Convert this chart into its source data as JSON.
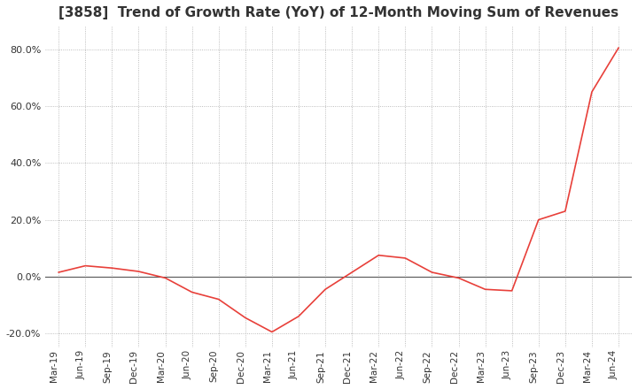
{
  "title": "[3858]  Trend of Growth Rate (YoY) of 12-Month Moving Sum of Revenues",
  "title_fontsize": 11,
  "line_color": "#e8403a",
  "background_color": "#ffffff",
  "grid_color": "#aaaaaa",
  "zero_line_color": "#555555",
  "ylim": [
    -25,
    88
  ],
  "yticks": [
    -20.0,
    0.0,
    20.0,
    40.0,
    60.0,
    80.0
  ],
  "x_labels": [
    "Mar-19",
    "Jun-19",
    "Sep-19",
    "Dec-19",
    "Mar-20",
    "Jun-20",
    "Sep-20",
    "Dec-20",
    "Mar-21",
    "Jun-21",
    "Sep-21",
    "Dec-21",
    "Mar-22",
    "Jun-22",
    "Sep-22",
    "Dec-22",
    "Mar-23",
    "Jun-23",
    "Sep-23",
    "Dec-23",
    "Mar-24",
    "Jun-24"
  ],
  "values": [
    1.5,
    3.8,
    3.0,
    1.8,
    -0.5,
    -5.5,
    -8.0,
    -14.5,
    -19.5,
    -14.0,
    -4.5,
    1.5,
    7.5,
    6.5,
    1.5,
    -0.5,
    -4.5,
    -5.0,
    20.0,
    23.0,
    65.0,
    80.5
  ]
}
